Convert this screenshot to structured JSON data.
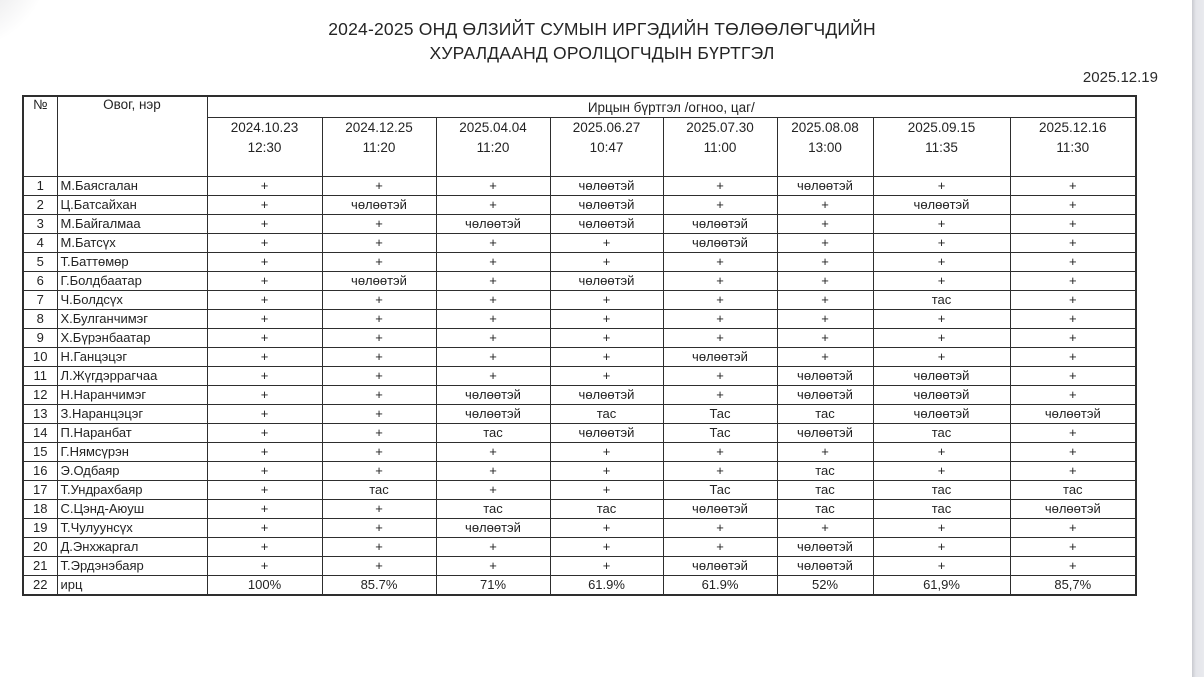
{
  "page": {
    "title_line1": "2024-2025 ОНД ӨЛЗИЙТ СУМЫН ИРГЭДИЙН ТӨЛӨӨЛӨГЧДИЙН",
    "title_line2": "ХУРАЛДААНД ОРОЛЦОГЧДЫН БҮРТГЭЛ",
    "date": "2025.12.19"
  },
  "table": {
    "col_no_header": "№",
    "col_name_header": "Овог, нэр",
    "span_header": "Ирцын бүртгэл /огноо, цаг/",
    "sessions": [
      {
        "date": "2024.10.23",
        "time": "12:30"
      },
      {
        "date": "2024.12.25",
        "time": "11:20"
      },
      {
        "date": "2025.04.04",
        "time": "11:20"
      },
      {
        "date": "2025.06.27",
        "time": "10:47"
      },
      {
        "date": "2025.07.30",
        "time": "11:00"
      },
      {
        "date": "2025.08.08",
        "time": "13:00"
      },
      {
        "date": "2025.09.15",
        "time": "11:35"
      },
      {
        "date": "2025.12.16",
        "time": "11:30"
      }
    ],
    "rows": [
      {
        "no": "1",
        "name": "М.Баясгалан",
        "marks": [
          "+",
          "+",
          "+",
          "чөлөөтэй",
          "+",
          "чөлөөтэй",
          "+",
          "+"
        ]
      },
      {
        "no": "2",
        "name": "Ц.Батсайхан",
        "marks": [
          "+",
          "чөлөөтэй",
          "+",
          "чөлөөтэй",
          "+",
          "+",
          "чөлөөтэй",
          "+"
        ]
      },
      {
        "no": "3",
        "name": "М.Байгалмаа",
        "marks": [
          "+",
          "+",
          "чөлөөтэй",
          "чөлөөтэй",
          "чөлөөтэй",
          "+",
          "+",
          "+"
        ]
      },
      {
        "no": "4",
        "name": "М.Батсүх",
        "marks": [
          "+",
          "+",
          "+",
          "+",
          "чөлөөтэй",
          "+",
          "+",
          "+"
        ]
      },
      {
        "no": "5",
        "name": "Т.Баттөмөр",
        "marks": [
          "+",
          "+",
          "+",
          "+",
          "+",
          "+",
          "+",
          "+"
        ]
      },
      {
        "no": "6",
        "name": "Г.Болдбаатар",
        "marks": [
          "+",
          "чөлөөтэй",
          "+",
          "чөлөөтэй",
          "+",
          "+",
          "+",
          "+"
        ]
      },
      {
        "no": "7",
        "name": "Ч.Болдсүх",
        "marks": [
          "+",
          "+",
          "+",
          "+",
          "+",
          "+",
          "тас",
          "+"
        ]
      },
      {
        "no": "8",
        "name": "Х.Булганчимэг",
        "marks": [
          "+",
          "+",
          "+",
          "+",
          "+",
          "+",
          "+",
          "+"
        ]
      },
      {
        "no": "9",
        "name": "Х.Бүрэнбаатар",
        "marks": [
          "+",
          "+",
          "+",
          "+",
          "+",
          "+",
          "+",
          "+"
        ]
      },
      {
        "no": "10",
        "name": "Н.Ганцэцэг",
        "marks": [
          "+",
          "+",
          "+",
          "+",
          "чөлөөтэй",
          "+",
          "+",
          "+"
        ]
      },
      {
        "no": "11",
        "name": "Л.Жүгдэррагчаа",
        "marks": [
          "+",
          "+",
          "+",
          "+",
          "+",
          "чөлөөтэй",
          "чөлөөтэй",
          "+"
        ]
      },
      {
        "no": "12",
        "name": "Н.Наранчимэг",
        "marks": [
          "+",
          "+",
          "чөлөөтэй",
          "чөлөөтэй",
          "+",
          "чөлөөтэй",
          "чөлөөтэй",
          "+"
        ]
      },
      {
        "no": "13",
        "name": "З.Наранцэцэг",
        "marks": [
          "+",
          "+",
          "чөлөөтэй",
          "тас",
          "Тас",
          "тас",
          "чөлөөтэй",
          "чөлөөтэй"
        ]
      },
      {
        "no": "14",
        "name": "П.Наранбат",
        "marks": [
          "+",
          "+",
          "тас",
          "чөлөөтэй",
          "Тас",
          "чөлөөтэй",
          "тас",
          "+"
        ]
      },
      {
        "no": "15",
        "name": "Г.Нямсүрэн",
        "marks": [
          "+",
          "+",
          "+",
          "+",
          "+",
          "+",
          "+",
          "+"
        ]
      },
      {
        "no": "16",
        "name": "Э.Одбаяр",
        "marks": [
          "+",
          "+",
          "+",
          "+",
          "+",
          "тас",
          "+",
          "+"
        ]
      },
      {
        "no": "17",
        "name": "Т.Ундрахбаяр",
        "marks": [
          "+",
          "тас",
          "+",
          "+",
          "Тас",
          "тас",
          "тас",
          "тас"
        ]
      },
      {
        "no": "18",
        "name": "С.Цэнд-Аюуш",
        "marks": [
          "+",
          "+",
          "тас",
          "тас",
          "чөлөөтэй",
          "тас",
          "тас",
          "чөлөөтэй"
        ]
      },
      {
        "no": "19",
        "name": "Т.Чулуунсүх",
        "marks": [
          "+",
          "+",
          "чөлөөтэй",
          "+",
          "+",
          "+",
          "+",
          "+"
        ]
      },
      {
        "no": "20",
        "name": "Д.Энхжаргал",
        "marks": [
          "+",
          "+",
          "+",
          "+",
          "+",
          "чөлөөтэй",
          "+",
          "+"
        ]
      },
      {
        "no": "21",
        "name": "Т.Эрдэнэбаяр",
        "marks": [
          "+",
          "+",
          "+",
          "+",
          "чөлөөтэй",
          "чөлөөтэй",
          "+",
          "+"
        ]
      },
      {
        "no": "22",
        "name": "ирц",
        "marks": [
          "100%",
          "85.7%",
          "71%",
          "61.9%",
          "61.9%",
          "52%",
          "61,9%",
          "85,7%"
        ]
      }
    ]
  }
}
